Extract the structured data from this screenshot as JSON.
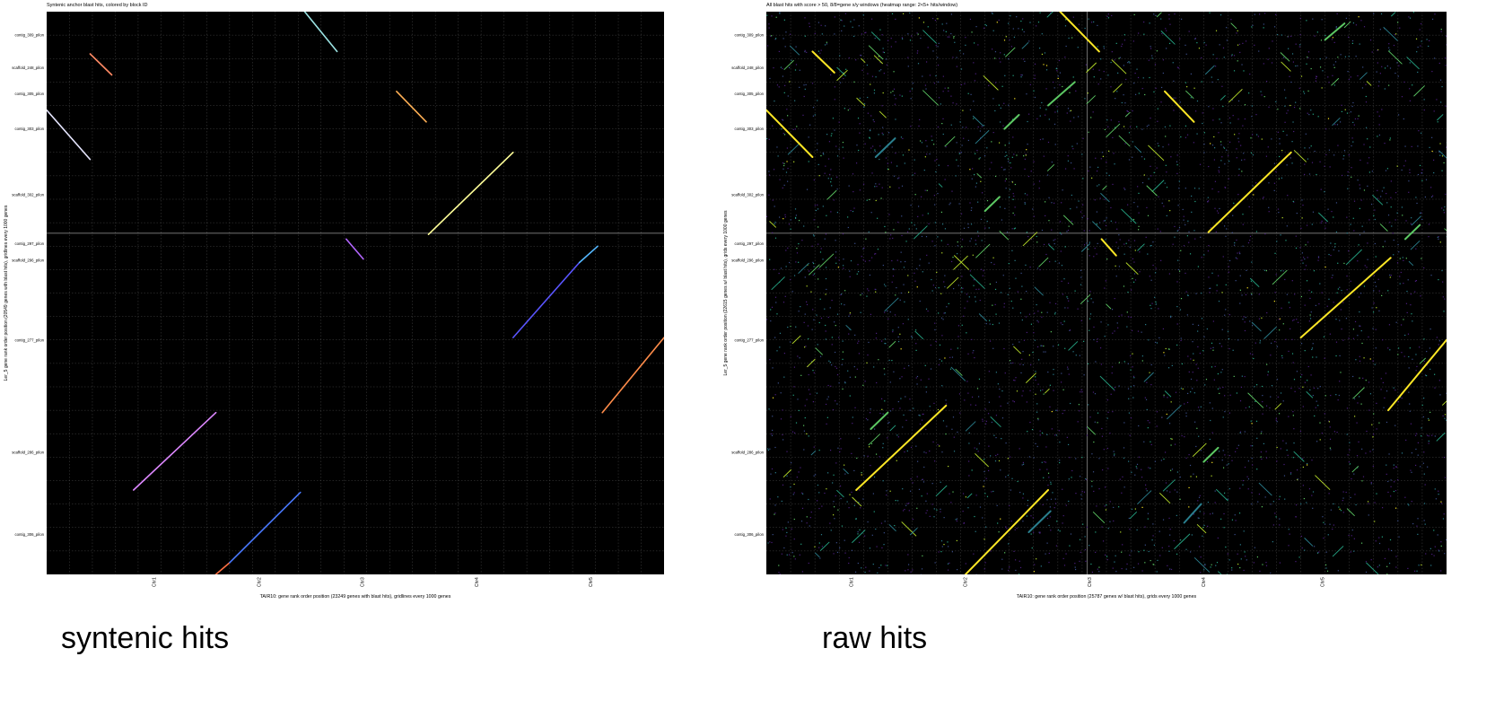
{
  "captions": {
    "left": "syntenic hits",
    "right": "raw hits"
  },
  "chart_data": [
    {
      "type": "scatter",
      "title": "Syntenic anchor blast hits, colored by block ID",
      "xlabel": "TAIR10: gene rank order position (23249 genes with blast hits), gridlines every 1000 genes",
      "ylabel": "Ler_5 gene rank order position (20549 genes with blast hits), gridlines every 1000 genes",
      "xlim": [
        0,
        27000
      ],
      "ylim": [
        0,
        24000
      ],
      "grid": true,
      "background": "#000000",
      "x_major_ticks": [
        {
          "value": 4700,
          "label": "Chr1"
        },
        {
          "value": 9300,
          "label": "Chr2"
        },
        {
          "value": 13800,
          "label": "Chr3"
        },
        {
          "value": 18800,
          "label": "Chr4"
        },
        {
          "value": 23800,
          "label": "Chr5"
        }
      ],
      "x_separators": [],
      "y_major_ticks": [
        {
          "value": 23000,
          "label": "contig_309_pilon"
        },
        {
          "value": 21600,
          "label": "scaffold_248_pilon"
        },
        {
          "value": 20500,
          "label": "contig_305_pilon"
        },
        {
          "value": 19000,
          "label": "contig_303_pilon"
        },
        {
          "value": 16200,
          "label": "scaffold_302_pilon"
        },
        {
          "value": 14100,
          "label": "contig_297_pilon"
        },
        {
          "value": 13400,
          "label": "scaffold_296_pilon"
        },
        {
          "value": 10000,
          "label": "contig_277_pilon"
        },
        {
          "value": 5200,
          "label": "scaffold_286_pilon"
        },
        {
          "value": 1700,
          "label": "contig_306_pilon"
        }
      ],
      "y_separators": [
        14550
      ],
      "series": [
        {
          "color": "#9be3e3",
          "x": [
            11200,
            12700
          ],
          "y": [
            24100,
            22300
          ]
        },
        {
          "color": "#ff8a65",
          "x": [
            1900,
            2850
          ],
          "y": [
            22200,
            21300
          ]
        },
        {
          "color": "#e6e6ff",
          "x": [
            0,
            1900
          ],
          "y": [
            19800,
            17700
          ]
        },
        {
          "color": "#ffb055",
          "x": [
            15300,
            16600
          ],
          "y": [
            20600,
            19300
          ]
        },
        {
          "color": "#ffff99",
          "x": [
            16700,
            20400
          ],
          "y": [
            14500,
            18000
          ]
        },
        {
          "color": "#b366ff",
          "x": [
            13100,
            13850
          ],
          "y": [
            14300,
            13450
          ]
        },
        {
          "color": "#5a55ff",
          "x": [
            20400,
            23300
          ],
          "y": [
            10100,
            13300
          ]
        },
        {
          "color": "#55b8ff",
          "x": [
            23300,
            24100
          ],
          "y": [
            13300,
            14000
          ]
        },
        {
          "color": "#ff8c4a",
          "x": [
            24300,
            27000
          ],
          "y": [
            6900,
            10100
          ]
        },
        {
          "color": "#dd88ff",
          "x": [
            3800,
            7400
          ],
          "y": [
            3600,
            6900
          ]
        },
        {
          "color": "#ff7043",
          "x": [
            7400,
            8000
          ],
          "y": [
            0,
            500
          ]
        },
        {
          "color": "#4a7aff",
          "x": [
            8000,
            11100
          ],
          "y": [
            500,
            3500
          ]
        }
      ]
    },
    {
      "type": "scatter",
      "title": "All blast hits with score > 50, 8/8=gene x/y windows (heatmap range: 2<5+ hits/window)",
      "xlabel": "TAIR10: gene rank order position (25787 genes w/ blast hits), grids every 1000 genes",
      "ylabel": "Ler_5 gene rank order position (22615 genes w/ blast hits), grids every 1000 genes",
      "xlim": [
        0,
        28000
      ],
      "ylim": [
        0,
        24000
      ],
      "grid": true,
      "background": "#000000",
      "x_major_ticks": [
        {
          "value": 3500,
          "label": "Chr1"
        },
        {
          "value": 8200,
          "label": "Chr2"
        },
        {
          "value": 13300,
          "label": "Chr3"
        },
        {
          "value": 18000,
          "label": "Chr4"
        },
        {
          "value": 22900,
          "label": "Chr5"
        }
      ],
      "x_separators": [
        13200
      ],
      "y_major_ticks": [
        {
          "value": 23000,
          "label": "contig_309_pilon"
        },
        {
          "value": 21600,
          "label": "scaffold_248_pilon"
        },
        {
          "value": 20500,
          "label": "contig_305_pilon"
        },
        {
          "value": 19000,
          "label": "contig_303_pilon"
        },
        {
          "value": 16200,
          "label": "scaffold_302_pilon"
        },
        {
          "value": 14100,
          "label": "contig_297_pilon"
        },
        {
          "value": 13400,
          "label": "scaffold_296_pilon"
        },
        {
          "value": 10000,
          "label": "contig_277_pilon"
        },
        {
          "value": 5200,
          "label": "scaffold_286_pilon"
        },
        {
          "value": 1700,
          "label": "contig_306_pilon"
        }
      ],
      "y_separators": [
        14550
      ],
      "noise_colors": [
        "#4b1e7e",
        "#3b4f8c",
        "#2a7f8e",
        "#25a584",
        "#5cc863",
        "#b8de29",
        "#fde725"
      ],
      "noise_density": 3800,
      "series": [
        {
          "color": "#fde725",
          "x": [
            12000,
            13700
          ],
          "y": [
            24100,
            22300
          ]
        },
        {
          "color": "#fde725",
          "x": [
            1900,
            2800
          ],
          "y": [
            22300,
            21400
          ]
        },
        {
          "color": "#fde725",
          "x": [
            0,
            1900
          ],
          "y": [
            19800,
            17800
          ]
        },
        {
          "color": "#fde725",
          "x": [
            16400,
            17600
          ],
          "y": [
            20600,
            19300
          ]
        },
        {
          "color": "#fde725",
          "x": [
            18200,
            21600
          ],
          "y": [
            14600,
            18000
          ]
        },
        {
          "color": "#fde725",
          "x": [
            13800,
            14400
          ],
          "y": [
            14300,
            13600
          ]
        },
        {
          "color": "#fde725",
          "x": [
            22000,
            25700
          ],
          "y": [
            10100,
            13500
          ]
        },
        {
          "color": "#fde725",
          "x": [
            25600,
            28000
          ],
          "y": [
            7000,
            10000
          ]
        },
        {
          "color": "#fde725",
          "x": [
            3700,
            7400
          ],
          "y": [
            3600,
            7200
          ]
        },
        {
          "color": "#fde725",
          "x": [
            8200,
            11600
          ],
          "y": [
            0,
            3600
          ]
        },
        {
          "color": "#5cc863",
          "x": [
            11600,
            12700
          ],
          "y": [
            20000,
            21000
          ]
        },
        {
          "color": "#5cc863",
          "x": [
            9800,
            10400
          ],
          "y": [
            19000,
            19600
          ]
        },
        {
          "color": "#2a7f8e",
          "x": [
            4500,
            5300
          ],
          "y": [
            17800,
            18600
          ]
        },
        {
          "color": "#5cc863",
          "x": [
            23000,
            23800
          ],
          "y": [
            22800,
            23500
          ]
        },
        {
          "color": "#5cc863",
          "x": [
            9000,
            9600
          ],
          "y": [
            15500,
            16100
          ]
        },
        {
          "color": "#5cc863",
          "x": [
            4300,
            5000
          ],
          "y": [
            6200,
            6900
          ]
        },
        {
          "color": "#2a7f8e",
          "x": [
            10800,
            11700
          ],
          "y": [
            1800,
            2700
          ]
        },
        {
          "color": "#5cc863",
          "x": [
            18000,
            18600
          ],
          "y": [
            4800,
            5400
          ]
        },
        {
          "color": "#2a7f8e",
          "x": [
            17200,
            17900
          ],
          "y": [
            2200,
            3000
          ]
        },
        {
          "color": "#5cc863",
          "x": [
            26300,
            26900
          ],
          "y": [
            14300,
            14900
          ]
        }
      ]
    }
  ]
}
